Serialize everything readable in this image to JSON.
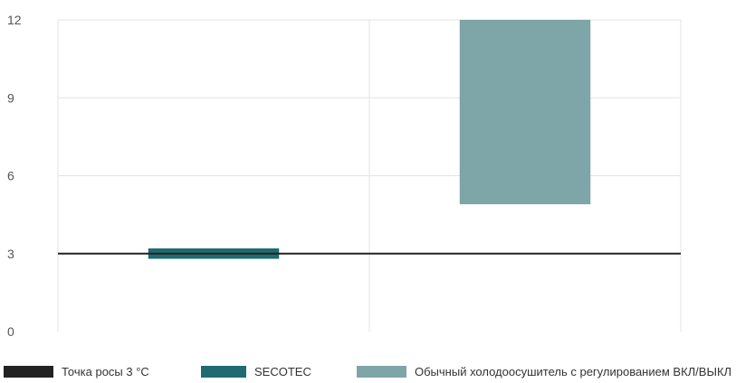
{
  "chart_data": {
    "type": "bar",
    "subtype": "floating-range",
    "title": "",
    "xlabel": "",
    "ylabel": "",
    "ylim": [
      0,
      12
    ],
    "yticks": [
      "0",
      "3",
      "6",
      "9",
      "12"
    ],
    "grid": true,
    "categories": [
      "SECOTEC",
      "Обычный холодоосушитель с регулированием ВКЛ/ВЫКЛ"
    ],
    "series": [
      {
        "name": "SECOTEC",
        "low": 2.8,
        "high": 3.2,
        "color": "#1f6b71"
      },
      {
        "name": "Обычный холодоосушитель с регулированием ВКЛ/ВЫКЛ",
        "low": 4.9,
        "high": 12,
        "color": "#7ea5a8"
      }
    ],
    "reference_line": {
      "name": "Точка росы 3 °C",
      "value": 3,
      "color": "#222222"
    },
    "legend_position": "bottom"
  },
  "legend": [
    {
      "label": "Точка росы 3 °C",
      "color": "#222222"
    },
    {
      "label": "SECOTEC",
      "color": "#1f6b71"
    },
    {
      "label": "Обычный холодоосушитель с регулированием ВКЛ/ВЫКЛ",
      "color": "#7ea5a8"
    }
  ]
}
